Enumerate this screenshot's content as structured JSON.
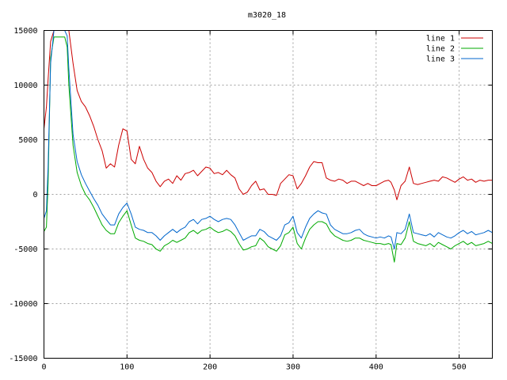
{
  "chart_data": {
    "type": "line",
    "title": "m3020_18",
    "xlabel": "",
    "ylabel": "",
    "xlim": [
      0,
      540
    ],
    "ylim": [
      -15000,
      15000
    ],
    "xticks": [
      0,
      100,
      200,
      300,
      400,
      500
    ],
    "yticks": [
      -15000,
      -10000,
      -5000,
      0,
      5000,
      10000,
      15000
    ],
    "grid": true,
    "legend_position": "top-right",
    "series": [
      {
        "name": "line 1",
        "color": "#cc0000",
        "x": [
          0,
          3,
          5,
          8,
          12,
          18,
          25,
          30,
          35,
          40,
          45,
          50,
          55,
          60,
          65,
          70,
          75,
          80,
          85,
          90,
          95,
          100,
          105,
          110,
          115,
          120,
          125,
          130,
          135,
          140,
          145,
          150,
          155,
          160,
          165,
          170,
          175,
          180,
          185,
          190,
          195,
          200,
          205,
          210,
          215,
          220,
          225,
          230,
          235,
          240,
          245,
          250,
          255,
          260,
          265,
          270,
          275,
          280,
          285,
          290,
          295,
          300,
          305,
          310,
          315,
          320,
          325,
          330,
          335,
          340,
          345,
          350,
          355,
          360,
          365,
          370,
          375,
          380,
          385,
          390,
          395,
          400,
          405,
          410,
          415,
          418,
          422,
          425,
          430,
          435,
          440,
          445,
          450,
          455,
          460,
          465,
          470,
          475,
          480,
          485,
          490,
          495,
          500,
          505,
          510,
          515,
          520,
          525,
          530,
          535,
          540
        ],
        "y": [
          6000,
          8000,
          10500,
          14000,
          15000,
          15000,
          15000,
          15000,
          12000,
          9500,
          8500,
          8000,
          7200,
          6200,
          5000,
          4000,
          2400,
          2800,
          2500,
          4500,
          6000,
          5800,
          3200,
          2800,
          4400,
          3200,
          2400,
          2000,
          1200,
          700,
          1200,
          1400,
          1000,
          1700,
          1300,
          1900,
          2000,
          2200,
          1700,
          2100,
          2500,
          2400,
          1900,
          2000,
          1800,
          2200,
          1800,
          1500,
          500,
          0,
          200,
          800,
          1200,
          400,
          500,
          0,
          0,
          -100,
          1000,
          1400,
          1800,
          1700,
          500,
          1000,
          1700,
          2500,
          3000,
          2900,
          2900,
          1500,
          1300,
          1200,
          1400,
          1300,
          1000,
          1200,
          1200,
          1000,
          800,
          1000,
          800,
          800,
          1000,
          1200,
          1300,
          1100,
          400,
          -500,
          800,
          1200,
          2500,
          1000,
          900,
          1000,
          1100,
          1200,
          1300,
          1200,
          1600,
          1500,
          1300,
          1100,
          1400,
          1600,
          1300,
          1400,
          1100,
          1300,
          1200,
          1300,
          1300
        ]
      },
      {
        "name": "line 2",
        "color": "#00aa00",
        "x": [
          0,
          3,
          5,
          8,
          12,
          15,
          20,
          25,
          28,
          30,
          35,
          40,
          45,
          50,
          55,
          60,
          65,
          70,
          75,
          80,
          85,
          90,
          95,
          100,
          105,
          110,
          115,
          120,
          125,
          130,
          135,
          140,
          145,
          150,
          155,
          160,
          165,
          170,
          175,
          180,
          185,
          190,
          195,
          200,
          205,
          210,
          215,
          220,
          225,
          230,
          235,
          240,
          245,
          250,
          255,
          260,
          265,
          270,
          275,
          280,
          285,
          290,
          295,
          300,
          305,
          310,
          315,
          320,
          325,
          330,
          335,
          340,
          345,
          350,
          355,
          360,
          365,
          370,
          375,
          380,
          385,
          390,
          395,
          400,
          405,
          410,
          415,
          418,
          422,
          425,
          430,
          435,
          440,
          445,
          450,
          455,
          460,
          465,
          470,
          475,
          480,
          485,
          490,
          495,
          500,
          505,
          510,
          515,
          520,
          525,
          530,
          535,
          540
        ],
        "y": [
          -3400,
          -3000,
          1000,
          12500,
          14400,
          14400,
          14400,
          14400,
          13500,
          10000,
          4500,
          2000,
          800,
          0,
          -500,
          -1200,
          -2000,
          -2800,
          -3300,
          -3600,
          -3600,
          -2600,
          -2000,
          -1500,
          -2800,
          -4000,
          -4200,
          -4300,
          -4500,
          -4600,
          -5000,
          -5200,
          -4700,
          -4500,
          -4200,
          -4400,
          -4200,
          -4000,
          -3500,
          -3300,
          -3600,
          -3300,
          -3200,
          -3000,
          -3300,
          -3500,
          -3400,
          -3200,
          -3400,
          -3800,
          -4500,
          -5100,
          -5000,
          -4800,
          -4700,
          -4000,
          -4300,
          -4800,
          -5000,
          -5200,
          -4700,
          -3700,
          -3500,
          -3000,
          -4500,
          -5000,
          -4000,
          -3200,
          -2800,
          -2500,
          -2500,
          -2700,
          -3400,
          -3800,
          -4000,
          -4200,
          -4300,
          -4200,
          -4000,
          -4000,
          -4200,
          -4300,
          -4400,
          -4500,
          -4500,
          -4600,
          -4500,
          -4600,
          -6200,
          -4500,
          -4600,
          -4000,
          -2500,
          -4300,
          -4500,
          -4600,
          -4700,
          -4500,
          -4800,
          -4400,
          -4600,
          -4800,
          -5000,
          -4700,
          -4500,
          -4300,
          -4600,
          -4400,
          -4700,
          -4600,
          -4500,
          -4300,
          -4500
        ]
      },
      {
        "name": "line 3",
        "color": "#0066cc",
        "x": [
          0,
          3,
          5,
          8,
          12,
          15,
          20,
          25,
          28,
          30,
          35,
          40,
          45,
          50,
          55,
          60,
          65,
          70,
          75,
          80,
          85,
          90,
          95,
          100,
          105,
          110,
          115,
          120,
          125,
          130,
          135,
          140,
          145,
          150,
          155,
          160,
          165,
          170,
          175,
          180,
          185,
          190,
          195,
          200,
          205,
          210,
          215,
          220,
          225,
          230,
          235,
          240,
          245,
          250,
          255,
          260,
          265,
          270,
          275,
          280,
          285,
          290,
          295,
          300,
          305,
          310,
          315,
          320,
          325,
          330,
          335,
          340,
          345,
          350,
          355,
          360,
          365,
          370,
          375,
          380,
          385,
          390,
          395,
          400,
          405,
          410,
          415,
          418,
          422,
          425,
          430,
          435,
          440,
          445,
          450,
          455,
          460,
          465,
          470,
          475,
          480,
          485,
          490,
          495,
          500,
          505,
          510,
          515,
          520,
          525,
          530,
          535,
          540
        ],
        "y": [
          -2200,
          -1500,
          2500,
          12000,
          15000,
          15000,
          15000,
          15000,
          14500,
          11500,
          5500,
          3000,
          1800,
          1000,
          300,
          -400,
          -1000,
          -1800,
          -2300,
          -2800,
          -2800,
          -1800,
          -1200,
          -800,
          -1800,
          -3000,
          -3200,
          -3300,
          -3500,
          -3500,
          -3800,
          -4200,
          -3800,
          -3500,
          -3200,
          -3500,
          -3200,
          -3000,
          -2500,
          -2300,
          -2700,
          -2300,
          -2200,
          -2000,
          -2300,
          -2500,
          -2300,
          -2200,
          -2300,
          -2800,
          -3500,
          -4200,
          -4000,
          -3800,
          -3800,
          -3200,
          -3400,
          -3800,
          -4000,
          -4200,
          -3800,
          -2800,
          -2600,
          -2000,
          -3500,
          -4000,
          -3000,
          -2200,
          -1800,
          -1500,
          -1700,
          -1800,
          -2800,
          -3200,
          -3400,
          -3600,
          -3600,
          -3500,
          -3300,
          -3200,
          -3600,
          -3800,
          -3900,
          -4000,
          -3900,
          -4000,
          -3800,
          -3900,
          -5000,
          -3500,
          -3600,
          -3200,
          -1800,
          -3500,
          -3600,
          -3700,
          -3800,
          -3600,
          -3900,
          -3500,
          -3700,
          -3900,
          -4000,
          -3800,
          -3500,
          -3300,
          -3600,
          -3400,
          -3700,
          -3600,
          -3500,
          -3300,
          -3500
        ]
      }
    ]
  }
}
